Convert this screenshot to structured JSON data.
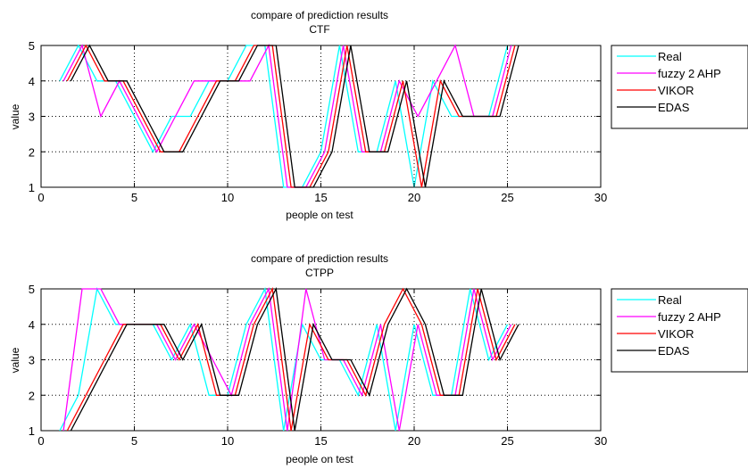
{
  "chart_data": [
    {
      "type": "line",
      "title": "compare of prediction results",
      "subtitle": "CTF",
      "xlabel": "people on test",
      "ylabel": "value",
      "xlim": [
        0,
        30
      ],
      "ylim": [
        1,
        5
      ],
      "xticks": [
        0,
        5,
        10,
        15,
        20,
        25,
        30
      ],
      "yticks": [
        1,
        2,
        3,
        4,
        5
      ],
      "grid": true,
      "legend_position": "outside-right",
      "series": [
        {
          "name": "Real",
          "color": "#00ffff",
          "x": [
            1,
            2,
            3,
            4,
            5,
            6,
            7,
            8,
            9,
            10,
            11,
            12,
            13,
            14,
            15,
            16,
            17,
            18,
            19,
            20,
            21,
            22,
            23,
            24,
            25
          ],
          "y": [
            4,
            5,
            4,
            4,
            3,
            2,
            3,
            3,
            4,
            4,
            5,
            5,
            1,
            1,
            2,
            5,
            2,
            2,
            4,
            1,
            4,
            3,
            3,
            3,
            5
          ]
        },
        {
          "name": "fuzzy 2 AHP",
          "color": "#ff00ff",
          "x": [
            1.2,
            2.2,
            3.2,
            4.2,
            5.2,
            6.2,
            7.2,
            8.2,
            9.2,
            10.2,
            11.2,
            12.2,
            13.2,
            14.2,
            15.2,
            16.2,
            17.2,
            18.2,
            19.2,
            20.2,
            21.2,
            22.2,
            23.2,
            24.2,
            25.2
          ],
          "y": [
            4,
            5,
            3,
            4,
            3,
            2,
            3,
            4,
            4,
            4,
            4,
            5,
            1,
            1,
            2,
            5,
            2,
            2,
            4,
            3,
            4,
            5,
            3,
            3,
            5
          ]
        },
        {
          "name": "VIKOR",
          "color": "#ff0000",
          "x": [
            1.4,
            2.4,
            3.4,
            4.4,
            5.4,
            6.4,
            7.4,
            8.4,
            9.4,
            10.4,
            11.4,
            12.4,
            13.4,
            14.4,
            15.4,
            16.4,
            17.4,
            18.4,
            19.4,
            20.4,
            21.4,
            22.4,
            23.4,
            24.4,
            25.4
          ],
          "y": [
            4,
            5,
            4,
            4,
            3,
            2,
            2,
            3,
            4,
            4,
            5,
            5,
            1,
            1,
            2,
            5,
            2,
            2,
            4,
            1,
            4,
            3,
            3,
            3,
            5
          ]
        },
        {
          "name": "EDAS",
          "color": "#000000",
          "x": [
            1.6,
            2.6,
            3.6,
            4.6,
            5.6,
            6.6,
            7.6,
            8.6,
            9.6,
            10.6,
            11.6,
            12.6,
            13.6,
            14.6,
            15.6,
            16.6,
            17.6,
            18.6,
            19.6,
            20.6,
            21.6,
            22.6,
            23.6,
            24.6,
            25.6
          ],
          "y": [
            4,
            5,
            4,
            4,
            3,
            2,
            2,
            3,
            4,
            4,
            5,
            5,
            1,
            1,
            2,
            5,
            2,
            2,
            4,
            1,
            4,
            3,
            3,
            3,
            5
          ]
        }
      ]
    },
    {
      "type": "line",
      "title": "compare of prediction results",
      "subtitle": "CTPP",
      "xlabel": "people on test",
      "ylabel": "value",
      "xlim": [
        0,
        30
      ],
      "ylim": [
        1,
        5
      ],
      "xticks": [
        0,
        5,
        10,
        15,
        20,
        25,
        30
      ],
      "yticks": [
        1,
        2,
        3,
        4,
        5
      ],
      "grid": true,
      "legend_position": "outside-right",
      "series": [
        {
          "name": "Real",
          "color": "#00ffff",
          "x": [
            1,
            2,
            3,
            4,
            5,
            6,
            7,
            8,
            9,
            10,
            11,
            12,
            13,
            14,
            15,
            16,
            17,
            18,
            19,
            20,
            21,
            22,
            23,
            24,
            25
          ],
          "y": [
            1,
            2,
            5,
            4,
            4,
            4,
            3,
            4,
            2,
            2,
            4,
            5,
            1,
            4,
            3,
            3,
            2,
            4,
            1,
            4,
            2,
            2,
            5,
            3,
            4
          ]
        },
        {
          "name": "fuzzy 2 AHP",
          "color": "#ff00ff",
          "x": [
            1.2,
            2.2,
            3.2,
            4.2,
            5.2,
            6.2,
            7.2,
            8.2,
            9.2,
            10.2,
            11.2,
            12.2,
            13.2,
            14.2,
            15.2,
            16.2,
            17.2,
            18.2,
            19.2,
            20.2,
            21.2,
            22.2,
            23.2,
            24.2,
            25.2
          ],
          "y": [
            1,
            5,
            5,
            4,
            4,
            4,
            3,
            4,
            3,
            2,
            4,
            5,
            1,
            5,
            3,
            3,
            2,
            4,
            1,
            4,
            2,
            2,
            5,
            3,
            4
          ]
        },
        {
          "name": "VIKOR",
          "color": "#ff0000",
          "x": [
            1.4,
            2.4,
            3.4,
            4.4,
            5.4,
            6.4,
            7.4,
            8.4,
            9.4,
            10.4,
            11.4,
            12.4,
            13.4,
            14.4,
            15.4,
            16.4,
            17.4,
            18.4,
            19.4,
            20.4,
            21.4,
            22.4,
            23.4,
            24.4,
            25.4
          ],
          "y": [
            1,
            2,
            3,
            4,
            4,
            4,
            3,
            4,
            2,
            2,
            4,
            5,
            1,
            4,
            3,
            3,
            2,
            4,
            5,
            4,
            2,
            2,
            5,
            3,
            4
          ]
        },
        {
          "name": "EDAS",
          "color": "#000000",
          "x": [
            1.6,
            2.6,
            3.6,
            4.6,
            5.6,
            6.6,
            7.6,
            8.6,
            9.6,
            10.6,
            11.6,
            12.6,
            13.6,
            14.6,
            15.6,
            16.6,
            17.6,
            18.6,
            19.6,
            20.6,
            21.6,
            22.6,
            23.6,
            24.6,
            25.6
          ],
          "y": [
            1,
            2,
            3,
            4,
            4,
            4,
            3,
            4,
            2,
            2,
            4,
            5,
            1,
            4,
            3,
            3,
            2,
            4,
            5,
            4,
            2,
            2,
            5,
            3,
            4
          ]
        }
      ]
    }
  ]
}
